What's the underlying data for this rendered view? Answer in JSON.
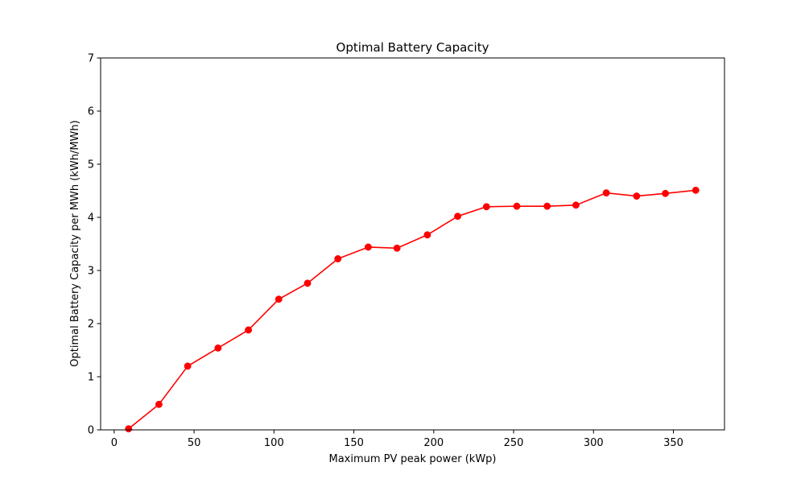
{
  "chart_data": {
    "type": "line",
    "title": "Optimal Battery Capacity",
    "xlabel": "Maximum PV peak power (kWp)",
    "ylabel": "Optimal Battery Capacity per MWh (kWh/MWh)",
    "xlim": [
      -8.5,
      382.0
    ],
    "ylim": [
      0,
      7
    ],
    "xticks": [
      0,
      50,
      100,
      150,
      200,
      250,
      300,
      350
    ],
    "yticks": [
      0,
      1,
      2,
      3,
      4,
      5,
      6,
      7
    ],
    "grid": false,
    "legend": "none",
    "series": [
      {
        "color": "#ff0000",
        "marker": "circle",
        "x": [
          9,
          28,
          46,
          65,
          84,
          103,
          121,
          140,
          159,
          177,
          196,
          215,
          233,
          252,
          271,
          289,
          308,
          327,
          345,
          364
        ],
        "y": [
          0.02,
          0.48,
          1.2,
          1.54,
          1.88,
          2.46,
          2.76,
          3.22,
          3.44,
          3.42,
          3.67,
          4.02,
          4.2,
          4.21,
          4.21,
          4.23,
          4.46,
          4.4,
          4.45,
          4.51
        ]
      }
    ]
  }
}
